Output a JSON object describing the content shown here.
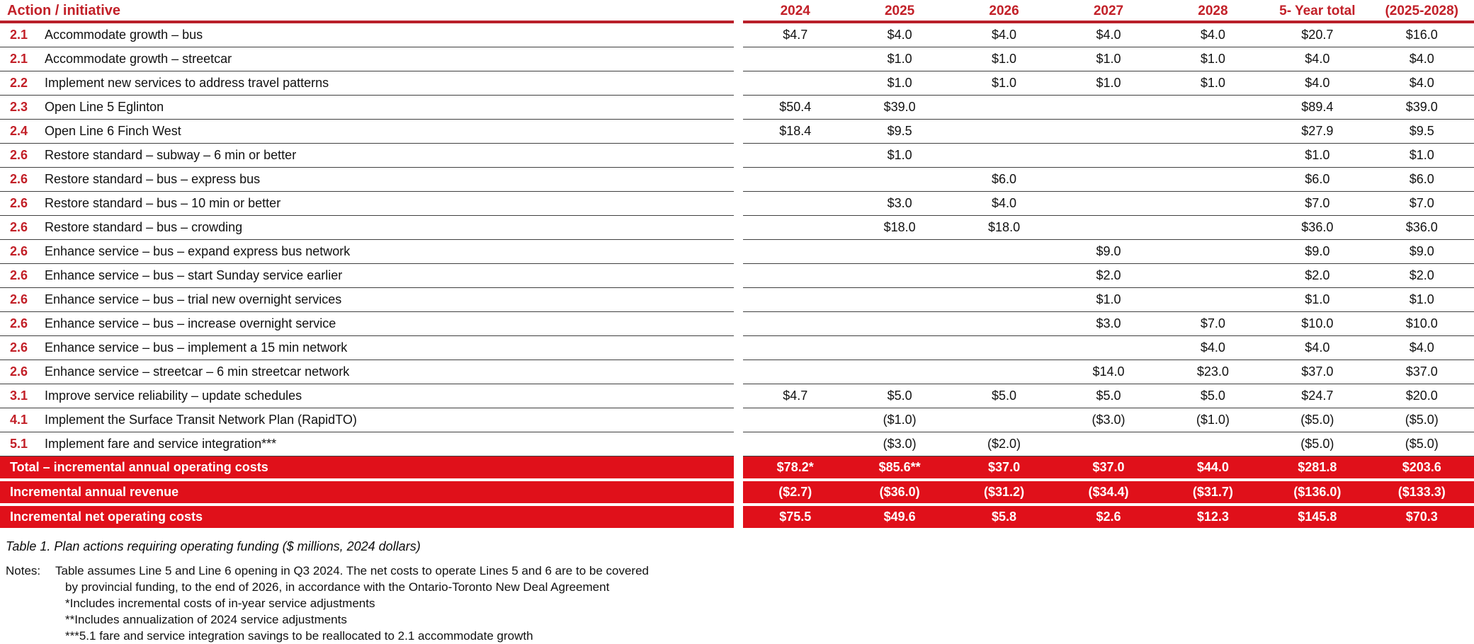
{
  "colors": {
    "header_red": "#c22028",
    "band_red": "#e0101a",
    "line_gray": "#3f3f3f"
  },
  "table": {
    "header": {
      "action_label": "Action / initiative",
      "columns": [
        "2024",
        "2025",
        "2026",
        "2027",
        "2028",
        "5- Year total",
        "(2025-2028)"
      ]
    },
    "rows": [
      {
        "num": "2.1",
        "label": "Accommodate growth – bus",
        "values": [
          "$4.7",
          "$4.0",
          "$4.0",
          "$4.0",
          "$4.0",
          "$20.7",
          "$16.0"
        ]
      },
      {
        "num": "2.1",
        "label": "Accommodate growth – streetcar",
        "values": [
          "",
          "$1.0",
          "$1.0",
          "$1.0",
          "$1.0",
          "$4.0",
          "$4.0"
        ]
      },
      {
        "num": "2.2",
        "label": "Implement new services to address travel patterns",
        "values": [
          "",
          "$1.0",
          "$1.0",
          "$1.0",
          "$1.0",
          "$4.0",
          "$4.0"
        ]
      },
      {
        "num": "2.3",
        "label": "Open Line 5 Eglinton",
        "values": [
          "$50.4",
          "$39.0",
          "",
          "",
          "",
          "$89.4",
          "$39.0"
        ]
      },
      {
        "num": "2.4",
        "label": "Open Line 6 Finch West",
        "values": [
          "$18.4",
          "$9.5",
          "",
          "",
          "",
          "$27.9",
          "$9.5"
        ]
      },
      {
        "num": "2.6",
        "label": "Restore standard – subway – 6 min or better",
        "values": [
          "",
          "$1.0",
          "",
          "",
          "",
          "$1.0",
          "$1.0"
        ]
      },
      {
        "num": "2.6",
        "label": "Restore standard – bus – express bus",
        "values": [
          "",
          "",
          "$6.0",
          "",
          "",
          "$6.0",
          "$6.0"
        ]
      },
      {
        "num": "2.6",
        "label": "Restore standard – bus – 10 min or better",
        "values": [
          "",
          "$3.0",
          "$4.0",
          "",
          "",
          "$7.0",
          "$7.0"
        ]
      },
      {
        "num": "2.6",
        "label": "Restore standard – bus – crowding",
        "values": [
          "",
          "$18.0",
          "$18.0",
          "",
          "",
          "$36.0",
          "$36.0"
        ]
      },
      {
        "num": "2.6",
        "label": "Enhance service – bus – expand express bus network",
        "values": [
          "",
          "",
          "",
          "$9.0",
          "",
          "$9.0",
          "$9.0"
        ]
      },
      {
        "num": "2.6",
        "label": "Enhance service – bus – start Sunday service earlier",
        "values": [
          "",
          "",
          "",
          "$2.0",
          "",
          "$2.0",
          "$2.0"
        ]
      },
      {
        "num": "2.6",
        "label": "Enhance service – bus – trial new overnight services",
        "values": [
          "",
          "",
          "",
          "$1.0",
          "",
          "$1.0",
          "$1.0"
        ]
      },
      {
        "num": "2.6",
        "label": "Enhance service – bus – increase overnight service",
        "values": [
          "",
          "",
          "",
          "$3.0",
          "$7.0",
          "$10.0",
          "$10.0"
        ]
      },
      {
        "num": "2.6",
        "label": "Enhance service – bus – implement a 15 min network",
        "values": [
          "",
          "",
          "",
          "",
          "$4.0",
          "$4.0",
          "$4.0"
        ]
      },
      {
        "num": "2.6",
        "label": "Enhance service – streetcar – 6 min streetcar network",
        "values": [
          "",
          "",
          "",
          "$14.0",
          "$23.0",
          "$37.0",
          "$37.0"
        ]
      },
      {
        "num": "3.1",
        "label": "Improve service reliability – update schedules",
        "values": [
          "$4.7",
          "$5.0",
          "$5.0",
          "$5.0",
          "$5.0",
          "$24.7",
          "$20.0"
        ]
      },
      {
        "num": "4.1",
        "label": "Implement the Surface Transit Network Plan (RapidTO)",
        "values": [
          "",
          "($1.0)",
          "",
          "($3.0)",
          "($1.0)",
          "($5.0)",
          "($5.0)"
        ]
      },
      {
        "num": "5.1",
        "label": "Implement fare and service integration***",
        "values": [
          "",
          "($3.0)",
          "($2.0)",
          "",
          "",
          "($5.0)",
          "($5.0)"
        ]
      }
    ],
    "summary_rows": [
      {
        "label": "Total – incremental annual operating costs",
        "values": [
          "$78.2*",
          "$85.6**",
          "$37.0",
          "$37.0",
          "$44.0",
          "$281.8",
          "$203.6"
        ]
      },
      {
        "label": "Incremental annual revenue",
        "values": [
          "($2.7)",
          "($36.0)",
          "($31.2)",
          "($34.4)",
          "($31.7)",
          "($136.0)",
          "($133.3)"
        ]
      },
      {
        "label": "Incremental net operating costs",
        "values": [
          "$75.5",
          "$49.6",
          "$5.8",
          "$2.6",
          "$12.3",
          "$145.8",
          "$70.3"
        ]
      }
    ]
  },
  "caption": "Table 1. Plan actions requiring operating funding ($ millions, 2024 dollars)",
  "notes": {
    "label": "Notes:",
    "lines": [
      "Table assumes Line 5 and Line 6 opening in Q3 2024. The net costs to operate Lines 5 and 6 are to be covered",
      "by provincial funding, to the end of 2026, in accordance with the Ontario-Toronto New Deal Agreement",
      "*Includes incremental costs of in-year service adjustments",
      "**Includes annualization of 2024 service adjustments",
      "***5.1 fare and service integration savings to be reallocated to 2.1 accommodate growth"
    ]
  }
}
